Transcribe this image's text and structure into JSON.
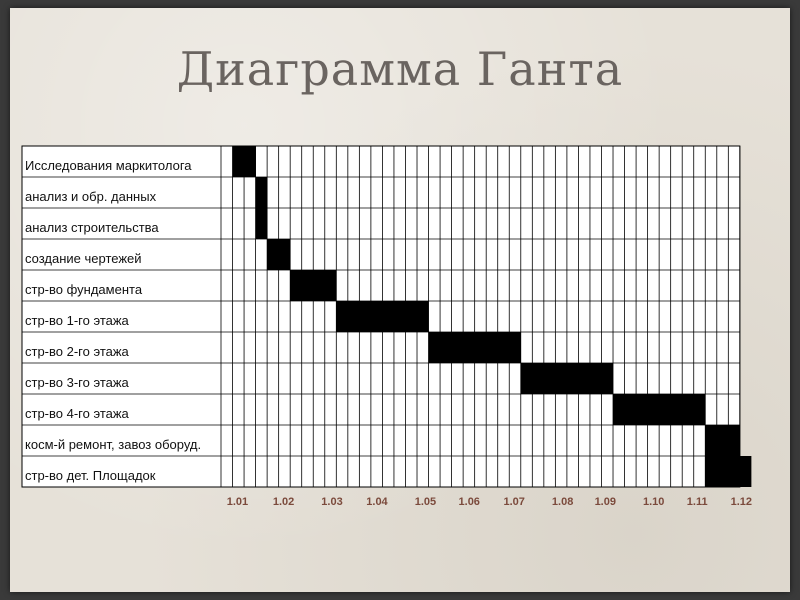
{
  "title": "Диаграмма Ганта",
  "chart_data": {
    "type": "gantt",
    "title": "Диаграмма Ганта",
    "timeline_columns": 45,
    "tasks": [
      {
        "name": "Исследования маркитолога",
        "start": 1,
        "end": 3
      },
      {
        "name": "анализ и обр. данных",
        "start": 3,
        "end": 4
      },
      {
        "name": "анализ строительства",
        "start": 3,
        "end": 4
      },
      {
        "name": "создание чертежей",
        "start": 4,
        "end": 6
      },
      {
        "name": "стр-во фундамента",
        "start": 6,
        "end": 10
      },
      {
        "name": "стр-во 1-го этажа",
        "start": 10,
        "end": 18
      },
      {
        "name": "стр-во 2-го этажа",
        "start": 18,
        "end": 26
      },
      {
        "name": "стр-во 3-го этажа",
        "start": 26,
        "end": 34
      },
      {
        "name": "стр-во 4-го этажа",
        "start": 34,
        "end": 42
      },
      {
        "name": "косм-й ремонт, завоз оборуд.",
        "start": 42,
        "end": 45
      },
      {
        "name": "стр-во дет. Площадок",
        "start": 42,
        "end": 46
      }
    ],
    "ticks": [
      {
        "label": "1.01",
        "col": 0.5
      },
      {
        "label": "1.02",
        "col": 4.5
      },
      {
        "label": "1.03",
        "col": 8.7
      },
      {
        "label": "1.04",
        "col": 12.6
      },
      {
        "label": "1.05",
        "col": 16.8
      },
      {
        "label": "1.06",
        "col": 20.6
      },
      {
        "label": "1.07",
        "col": 24.5
      },
      {
        "label": "1.08",
        "col": 28.7
      },
      {
        "label": "1.09",
        "col": 32.4
      },
      {
        "label": "1.10",
        "col": 36.6
      },
      {
        "label": "1.11",
        "col": 40.4
      },
      {
        "label": "1.12",
        "col": 44.2
      }
    ],
    "grid": true
  }
}
